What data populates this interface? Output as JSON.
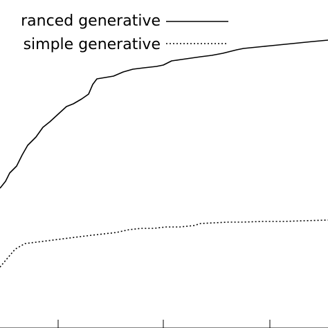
{
  "chart_data": {
    "type": "line",
    "title": "",
    "xlabel": "",
    "ylabel": "",
    "legend_position": "top-right",
    "grid": false,
    "series": [
      {
        "name": "advanced generative",
        "legend_label": "ranced generative",
        "style": "solid",
        "color": "#000000",
        "points": [
          [
            0,
            272
          ],
          [
            8,
            262
          ],
          [
            14,
            250
          ],
          [
            24,
            240
          ],
          [
            32,
            224
          ],
          [
            40,
            210
          ],
          [
            52,
            198
          ],
          [
            62,
            184
          ],
          [
            72,
            176
          ],
          [
            84,
            165
          ],
          [
            96,
            154
          ],
          [
            106,
            150
          ],
          [
            118,
            143
          ],
          [
            128,
            136
          ],
          [
            134,
            122
          ],
          [
            140,
            114
          ],
          [
            152,
            112
          ],
          [
            164,
            110
          ],
          [
            178,
            104
          ],
          [
            192,
            100
          ],
          [
            208,
            98
          ],
          [
            226,
            96
          ],
          [
            236,
            94
          ],
          [
            248,
            88
          ],
          [
            262,
            86
          ],
          [
            276,
            84
          ],
          [
            290,
            82
          ],
          [
            306,
            80
          ],
          [
            322,
            77
          ],
          [
            342,
            72
          ],
          [
            352,
            70
          ],
          [
            372,
            68
          ],
          [
            392,
            66
          ],
          [
            412,
            64
          ],
          [
            432,
            62
          ],
          [
            452,
            60
          ],
          [
            474,
            58
          ]
        ]
      },
      {
        "name": "simple generative",
        "legend_label": "simple generative",
        "style": "dotted",
        "color": "#000000",
        "points": [
          [
            0,
            386
          ],
          [
            10,
            374
          ],
          [
            22,
            360
          ],
          [
            36,
            352
          ],
          [
            52,
            350
          ],
          [
            68,
            348
          ],
          [
            84,
            346
          ],
          [
            100,
            344
          ],
          [
            116,
            342
          ],
          [
            132,
            340
          ],
          [
            150,
            338
          ],
          [
            168,
            336
          ],
          [
            186,
            332
          ],
          [
            204,
            330
          ],
          [
            222,
            330
          ],
          [
            240,
            328
          ],
          [
            260,
            328
          ],
          [
            280,
            326
          ],
          [
            290,
            323
          ],
          [
            310,
            322
          ],
          [
            330,
            321
          ],
          [
            350,
            321
          ],
          [
            380,
            320
          ],
          [
            410,
            320
          ],
          [
            440,
            319
          ],
          [
            474,
            318
          ]
        ]
      }
    ],
    "x_ticks": [
      84,
      236,
      390
    ],
    "ylim": [
      474,
      0
    ]
  }
}
